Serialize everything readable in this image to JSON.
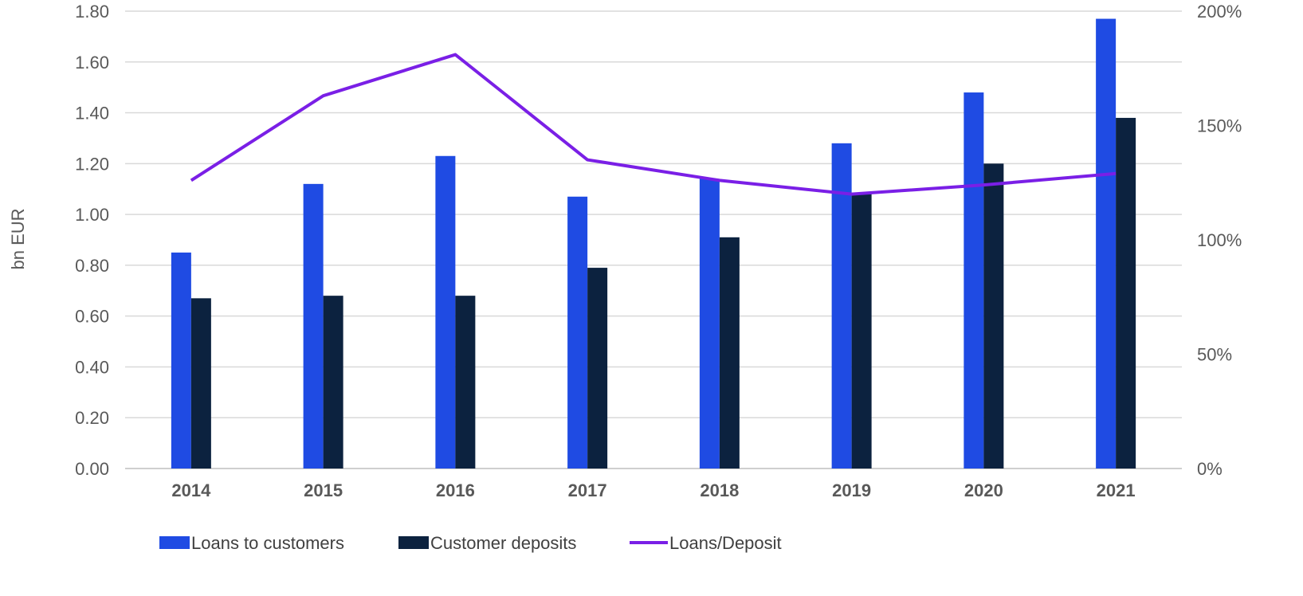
{
  "chart_data": {
    "type": "bar",
    "categories": [
      "2014",
      "2015",
      "2016",
      "2017",
      "2018",
      "2019",
      "2020",
      "2021"
    ],
    "series": [
      {
        "name": "Loans to customers",
        "kind": "bar",
        "axis": "left",
        "color": "#1f4be3",
        "values": [
          0.85,
          1.12,
          1.23,
          1.07,
          1.14,
          1.28,
          1.48,
          1.77
        ]
      },
      {
        "name": "Customer deposits",
        "kind": "bar",
        "axis": "left",
        "color": "#0c223f",
        "values": [
          0.67,
          0.68,
          0.68,
          0.79,
          0.91,
          1.08,
          1.2,
          1.38
        ]
      },
      {
        "name": "Loans/Deposit",
        "kind": "line",
        "axis": "right",
        "color": "#7a1fe6",
        "values": [
          126,
          163,
          181,
          135,
          126,
          120,
          124,
          129
        ]
      }
    ],
    "ylabel": "bn EUR",
    "ylim": [
      0,
      1.8
    ],
    "yticks": [
      "0.00",
      "0.20",
      "0.40",
      "0.60",
      "0.80",
      "1.00",
      "1.20",
      "1.40",
      "1.60",
      "1.80"
    ],
    "y2lim": [
      0,
      200
    ],
    "y2ticks": [
      "0%",
      "50%",
      "100%",
      "150%",
      "200%"
    ],
    "grid": true,
    "legend": "bottom"
  }
}
